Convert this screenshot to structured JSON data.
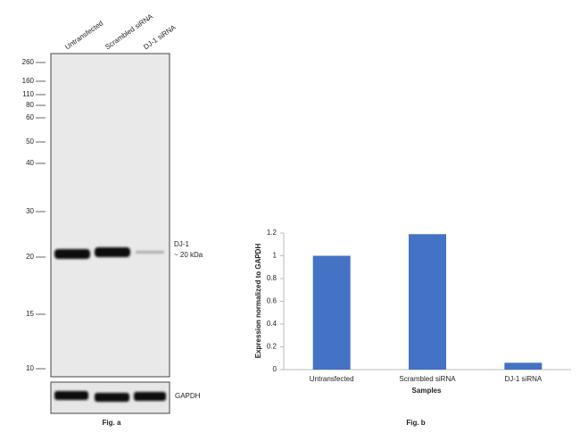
{
  "blot": {
    "lanes": [
      "Untransfected",
      "Scrambled siRNA",
      "DJ-1 siRNA"
    ],
    "markers": [
      "260",
      "160",
      "110",
      "80",
      "60",
      "50",
      "40",
      "30",
      "20",
      "15",
      "10"
    ],
    "band_label": "DJ-1",
    "band_size": "~ 20 kDa",
    "control_label": "GAPDH",
    "caption": "Fig. a"
  },
  "chart_data": {
    "type": "bar",
    "caption": "Fig. b",
    "x_label": "Samples",
    "y_label": "Expression normalized to GAPDH",
    "categories": [
      "Untransfected",
      "Scrambled siRNA",
      "DJ-1 siRNA"
    ],
    "values": [
      1.0,
      1.19,
      0.06
    ],
    "color": "#4472c4",
    "ylim": [
      0,
      1.2
    ],
    "yticks": [
      0,
      0.2,
      0.4,
      0.6,
      0.8,
      1,
      1.2
    ],
    "grid": false
  }
}
